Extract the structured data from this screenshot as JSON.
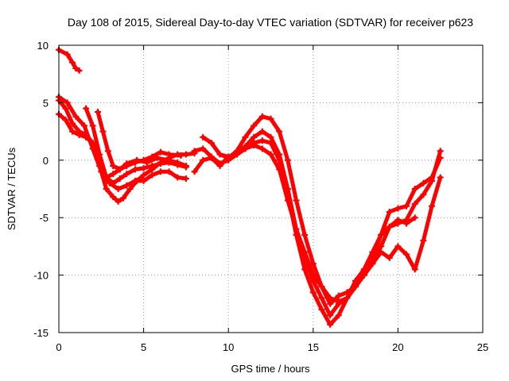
{
  "chart_data": {
    "type": "scatter",
    "title": "Day 108 of 2015, Sidereal Day-to-day VTEC variation (SDTVAR) for receiver p623",
    "xlabel": "GPS time / hours",
    "ylabel": "SDTVAR / TECUs",
    "xlim": [
      0,
      25
    ],
    "ylim": [
      -15,
      10
    ],
    "xticks": [
      0,
      5,
      10,
      15,
      20,
      25
    ],
    "yticks": [
      -15,
      -10,
      -5,
      0,
      5,
      10
    ],
    "grid": true,
    "color": "#ff0000",
    "marker": "plus",
    "series": [
      {
        "x": [
          0.0,
          0.5,
          0.8,
          1.0,
          1.2
        ],
        "y": [
          9.6,
          9.2,
          8.5,
          8.0,
          7.8
        ]
      },
      {
        "x": [
          0.0,
          0.4,
          0.8,
          1.2,
          1.6,
          2.0,
          2.4,
          2.8,
          3.2,
          3.5,
          3.8,
          4.2,
          4.6,
          5.0,
          5.5,
          6.0,
          6.5,
          7.0,
          7.5,
          8.0
        ],
        "y": [
          4.0,
          3.5,
          2.5,
          2.2,
          2.0,
          1.5,
          -0.5,
          -2.5,
          -3.2,
          -3.6,
          -3.3,
          -2.5,
          -1.8,
          -1.3,
          -0.8,
          -0.2,
          0.2,
          0.5,
          0.5,
          0.6
        ]
      },
      {
        "x": [
          0.0,
          0.4,
          0.8,
          1.2,
          1.6,
          2.0,
          2.4,
          2.8,
          3.2,
          3.6,
          4.0,
          4.5,
          5.0,
          5.5,
          6.0,
          6.5,
          7.0,
          7.5
        ],
        "y": [
          5.2,
          4.5,
          3.2,
          2.5,
          2.2,
          1.5,
          0.0,
          -1.5,
          -2.0,
          -1.6,
          -1.2,
          -0.8,
          -0.7,
          -0.5,
          -0.3,
          -0.2,
          -0.4,
          -0.6
        ]
      },
      {
        "x": [
          0.0,
          0.5,
          1.0,
          1.5,
          2.0,
          2.5,
          3.0,
          3.5,
          4.0,
          4.5,
          5.0,
          5.5,
          6.0,
          6.5,
          7.0,
          7.5
        ],
        "y": [
          5.5,
          5.0,
          3.8,
          3.0,
          1.0,
          -1.0,
          -2.0,
          -2.5,
          -2.2,
          -1.8,
          -1.8,
          -1.3,
          -1.0,
          -1.0,
          -1.5,
          -1.6
        ]
      },
      {
        "x": [
          1.6,
          2.0,
          2.4,
          2.8,
          3.2,
          3.6,
          4.0,
          4.5,
          5.0,
          5.5,
          6.0,
          6.5,
          7.2
        ],
        "y": [
          4.5,
          3.0,
          0.5,
          -1.5,
          -1.2,
          -0.8,
          -0.5,
          -0.2,
          0.0,
          0.3,
          0.7,
          0.5,
          0.4
        ]
      },
      {
        "x": [
          2.3,
          2.6,
          2.9,
          3.2,
          3.6,
          4.0,
          4.6,
          5.2,
          5.8,
          6.4,
          7.0,
          7.5
        ],
        "y": [
          4.2,
          2.5,
          0.8,
          -0.5,
          -0.8,
          -0.3,
          0.0,
          -0.2,
          0.2,
          0.0,
          -0.2,
          -0.5
        ]
      },
      {
        "x": [
          8.5,
          9.0,
          9.5,
          10.0,
          10.5,
          11.0,
          11.5,
          12.0,
          12.5,
          13.0,
          13.5,
          14.0,
          14.5,
          15.0,
          15.5,
          16.0,
          16.5,
          17.0,
          17.5,
          18.0,
          18.5,
          19.0,
          19.5,
          20.0,
          20.5,
          21.0,
          21.5,
          22.0,
          22.5
        ],
        "y": [
          2.0,
          1.5,
          0.5,
          0.2,
          0.8,
          2.0,
          3.0,
          3.8,
          3.6,
          2.5,
          0.0,
          -3.5,
          -6.5,
          -9.0,
          -11.0,
          -12.0,
          -12.3,
          -12.0,
          -10.5,
          -10.0,
          -9.0,
          -7.5,
          -5.8,
          -5.5,
          -5.2,
          -3.8,
          -3.0,
          -1.8,
          0.8
        ]
      },
      {
        "x": [
          8.0,
          8.5,
          9.0,
          9.5,
          10.0,
          10.5,
          11.0,
          11.5,
          12.0,
          12.5,
          13.0,
          13.5,
          14.0,
          14.5,
          15.0,
          15.5,
          16.0,
          16.5,
          17.0,
          17.5,
          18.0,
          18.5,
          19.0,
          19.5,
          20.0,
          20.5,
          21.0,
          21.5,
          22.0,
          22.5
        ],
        "y": [
          0.8,
          1.0,
          0.3,
          -0.3,
          0.0,
          0.5,
          1.2,
          2.0,
          2.5,
          2.0,
          0.5,
          -2.5,
          -6.0,
          -8.5,
          -10.5,
          -12.0,
          -13.5,
          -12.5,
          -12.0,
          -10.5,
          -9.5,
          -8.5,
          -6.5,
          -4.5,
          -4.2,
          -4.0,
          -2.5,
          -2.0,
          -1.5,
          0.2
        ]
      },
      {
        "x": [
          8.0,
          8.5,
          9.0,
          9.5,
          10.0,
          10.5,
          11.0,
          11.5,
          12.0,
          12.5,
          13.0,
          13.5,
          14.0,
          14.5,
          15.0,
          15.5,
          16.0,
          16.5,
          17.0,
          17.5,
          18.0,
          18.5,
          19.0,
          19.5,
          20.0,
          20.5,
          21.0
        ],
        "y": [
          -1.0,
          0.0,
          0.2,
          -0.5,
          0.3,
          0.5,
          1.0,
          1.5,
          1.7,
          1.5,
          0.0,
          -3.0,
          -6.5,
          -9.5,
          -11.5,
          -13.0,
          -14.3,
          -13.5,
          -12.0,
          -11.0,
          -9.5,
          -8.0,
          -6.5,
          -5.8,
          -5.2,
          -5.5,
          -5.0
        ]
      },
      {
        "x": [
          9.5,
          10.0,
          10.5,
          11.0,
          11.5,
          12.0,
          12.5,
          13.0,
          13.5,
          14.0,
          14.5,
          15.0,
          15.5,
          16.0,
          16.5,
          17.0,
          17.5,
          18.0,
          18.5,
          19.0,
          19.5,
          20.0,
          20.5,
          21.0,
          21.5,
          22.0,
          22.5
        ],
        "y": [
          0.5,
          0.3,
          0.5,
          1.0,
          1.3,
          1.0,
          0.5,
          -0.8,
          -3.5,
          -6.0,
          -8.0,
          -10.0,
          -11.0,
          -12.5,
          -11.8,
          -11.5,
          -11.0,
          -10.0,
          -9.0,
          -8.0,
          -8.5,
          -7.5,
          -8.2,
          -9.5,
          -7.0,
          -4.0,
          -1.5
        ]
      }
    ]
  }
}
